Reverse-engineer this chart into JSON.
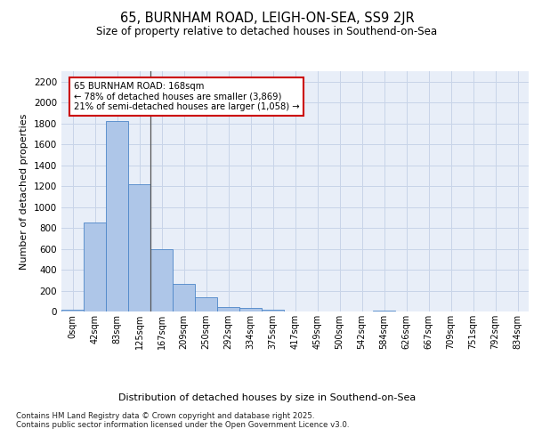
{
  "title": "65, BURNHAM ROAD, LEIGH-ON-SEA, SS9 2JR",
  "subtitle": "Size of property relative to detached houses in Southend-on-Sea",
  "xlabel": "Distribution of detached houses by size in Southend-on-Sea",
  "ylabel": "Number of detached properties",
  "bar_color": "#aec6e8",
  "bar_edge_color": "#4d86c8",
  "grid_color": "#c8d4e8",
  "background_color": "#e8eef8",
  "annotation_text": "65 BURNHAM ROAD: 168sqm\n← 78% of detached houses are smaller (3,869)\n21% of semi-detached houses are larger (1,058) →",
  "annotation_box_color": "white",
  "annotation_box_edge": "#cc0000",
  "footer": "Contains HM Land Registry data © Crown copyright and database right 2025.\nContains public sector information licensed under the Open Government Licence v3.0.",
  "tick_labels": [
    "0sqm",
    "42sqm",
    "83sqm",
    "125sqm",
    "167sqm",
    "209sqm",
    "250sqm",
    "292sqm",
    "334sqm",
    "375sqm",
    "417sqm",
    "459sqm",
    "500sqm",
    "542sqm",
    "584sqm",
    "626sqm",
    "667sqm",
    "709sqm",
    "751sqm",
    "792sqm",
    "834sqm"
  ],
  "bar_values": [
    20,
    850,
    1820,
    1220,
    600,
    260,
    135,
    45,
    30,
    20,
    0,
    0,
    0,
    0,
    12,
    0,
    0,
    0,
    0,
    0,
    0
  ],
  "ylim": [
    0,
    2300
  ],
  "yticks": [
    0,
    200,
    400,
    600,
    800,
    1000,
    1200,
    1400,
    1600,
    1800,
    2000,
    2200
  ],
  "figsize": [
    6.0,
    5.0
  ],
  "dpi": 100
}
